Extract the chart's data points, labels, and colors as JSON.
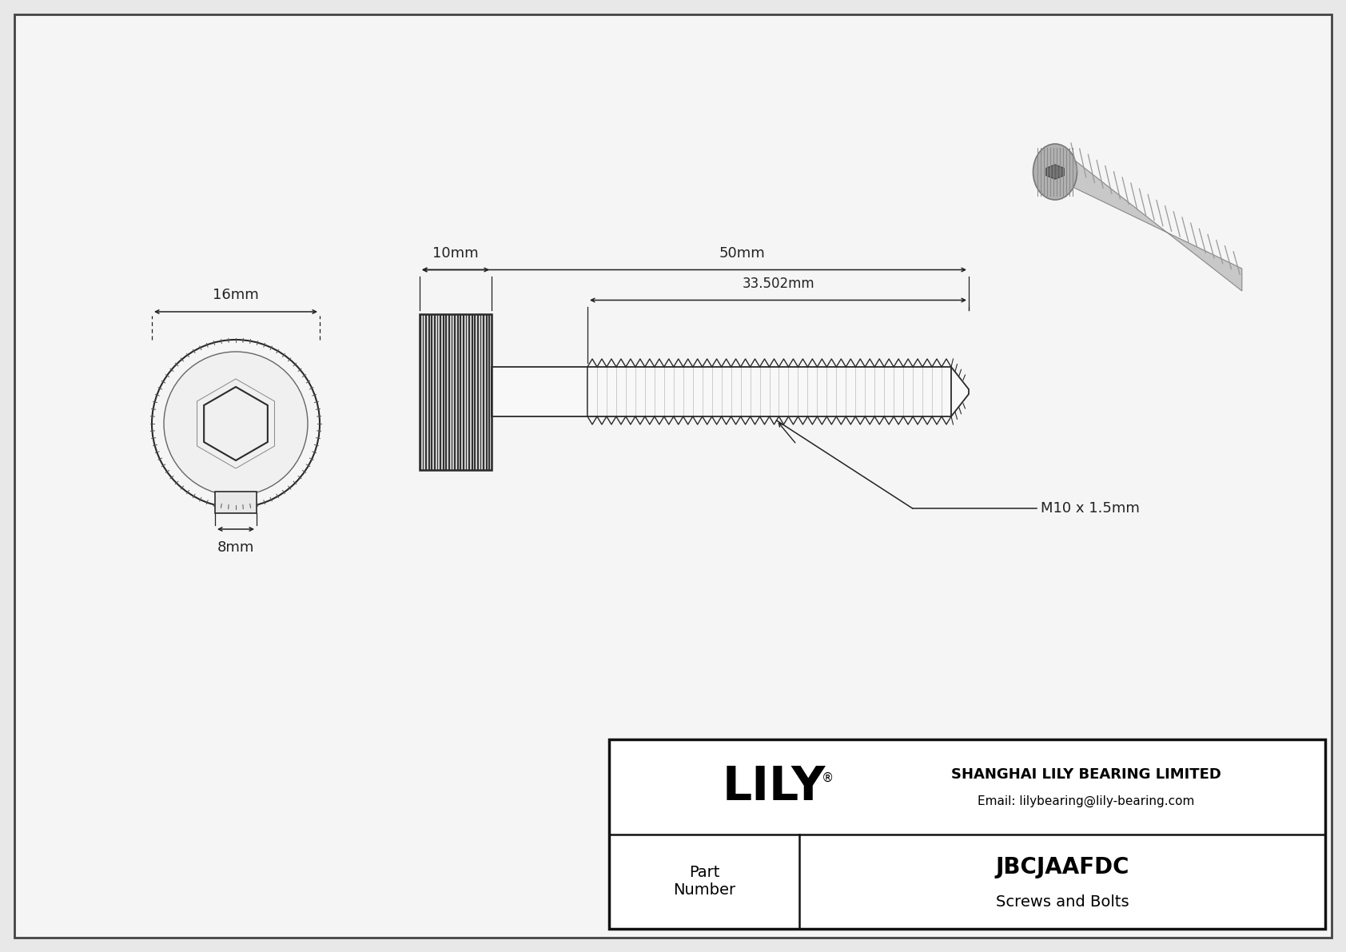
{
  "bg_color": "#e8e8e8",
  "drawing_bg": "#f5f5f5",
  "border_color": "#333333",
  "line_color": "#333333",
  "title": "JBCJAAFDC",
  "subtitle": "Screws and Bolts",
  "company": "SHANGHAI LILY BEARING LIMITED",
  "email": "Email: lilybearing@lily-bearing.com",
  "part_label": "Part\nNumber",
  "logo_text": "LILY",
  "logo_reg": "®",
  "dim_16mm": "16mm",
  "dim_8mm": "8mm",
  "dim_10mm": "10mm",
  "dim_50mm": "50mm",
  "dim_33502mm": "33.502mm",
  "dim_thread": "M10 x 1.5mm",
  "fig_w": 16.84,
  "fig_h": 11.91,
  "dpi": 100
}
